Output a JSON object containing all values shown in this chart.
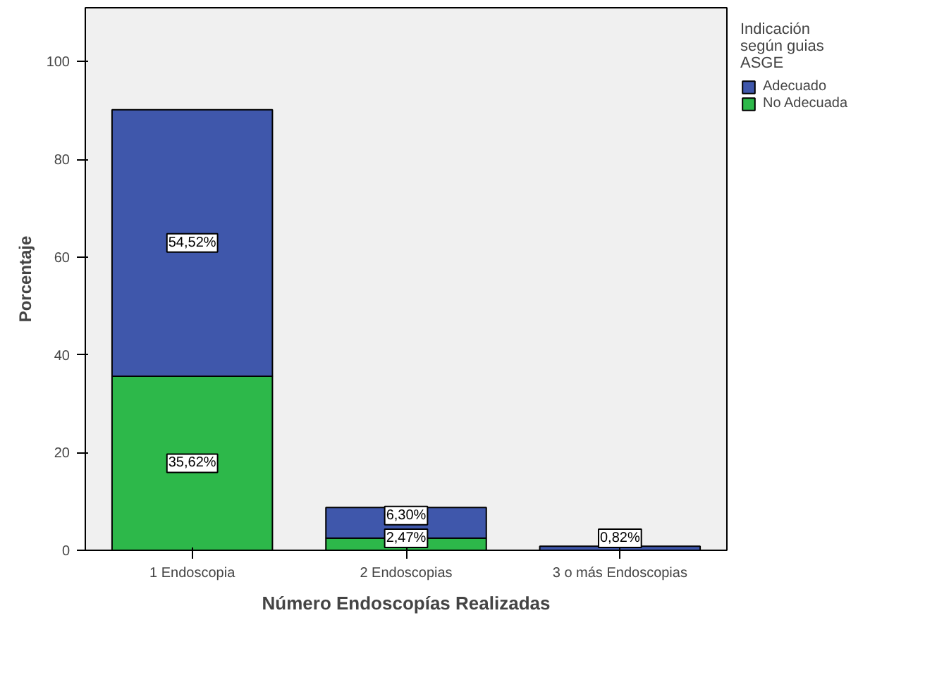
{
  "chart_data": {
    "type": "bar",
    "stacked": true,
    "xlabel": "Número Endoscopías Realizadas",
    "ylabel": "Porcentaje",
    "legend_title": "Indicación según guias ASGE",
    "categories": [
      "1 Endoscopia",
      "2 Endoscopias",
      "3 o más Endoscopias"
    ],
    "series": [
      {
        "name": "No Adecuada",
        "color": "#2db84a",
        "values": [
          35.62,
          2.47,
          null
        ],
        "value_labels": [
          "35,62%",
          "2,47%",
          null
        ]
      },
      {
        "name": "Adecuado",
        "color": "#3f57ab",
        "values": [
          54.52,
          6.3,
          0.82
        ],
        "value_labels": [
          "54,52%",
          "6,30%",
          "0,82%"
        ]
      }
    ],
    "ylim": [
      0,
      111
    ],
    "yticks": [
      0,
      20,
      40,
      60,
      80,
      100
    ],
    "grid": false,
    "legend": "top right"
  }
}
